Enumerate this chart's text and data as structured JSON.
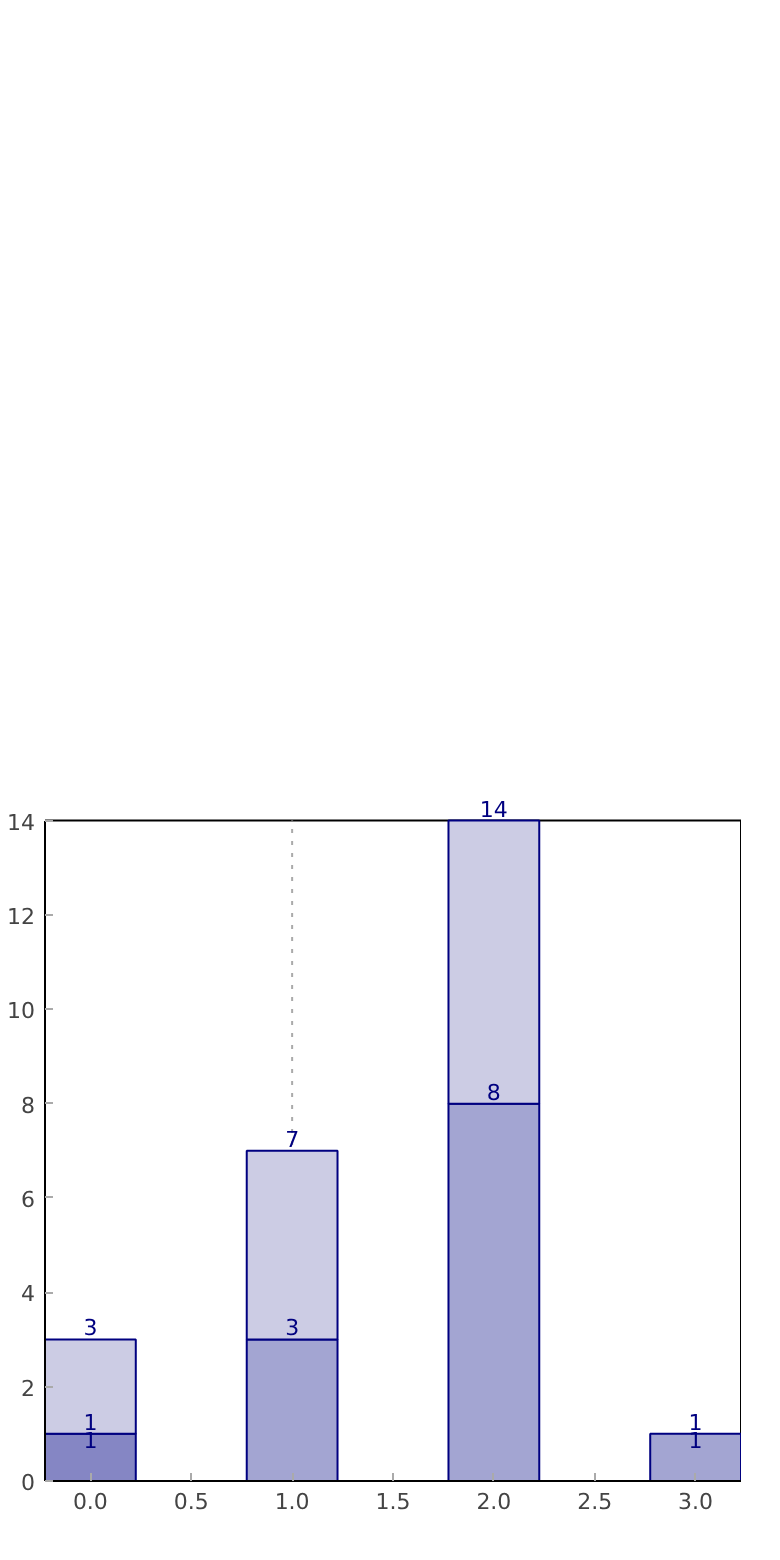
{
  "chart_data": {
    "type": "bar",
    "x": [
      0,
      1,
      2,
      3
    ],
    "stacked": true,
    "series": [
      {
        "color": "#8586c4",
        "values": [
          1,
          null,
          null,
          null
        ],
        "value_labels": [
          "1",
          null,
          null,
          null
        ]
      },
      {
        "color": "#a3a5d2",
        "values": [
          null,
          3,
          8,
          1
        ],
        "value_labels": [
          null,
          "3",
          "8",
          "1"
        ]
      },
      {
        "color": "#cccce4",
        "values": [
          2,
          4,
          6,
          null
        ]
      }
    ],
    "totals": [
      "3",
      "7",
      "14",
      "1"
    ],
    "annotations": [
      {
        "text": "1",
        "x": 0,
        "y": 1
      }
    ],
    "xlim": [
      -0.225,
      3.225
    ],
    "ylim": [
      0,
      14
    ],
    "xticks": [
      {
        "value": 0,
        "label": "0.0"
      },
      {
        "value": 0.5,
        "label": "0.5"
      },
      {
        "value": 1,
        "label": "1.0"
      },
      {
        "value": 1.5,
        "label": "1.5"
      },
      {
        "value": 2,
        "label": "2.0"
      },
      {
        "value": 2.5,
        "label": "2.5"
      },
      {
        "value": 3,
        "label": "3.0"
      }
    ],
    "yticks": [
      0,
      2,
      4,
      6,
      8,
      10,
      12,
      14
    ],
    "ref_lines": [
      {
        "axis": "x",
        "value": 1,
        "color": "#aaaaaa",
        "line_style": "dotted"
      }
    ],
    "grid": false
  }
}
